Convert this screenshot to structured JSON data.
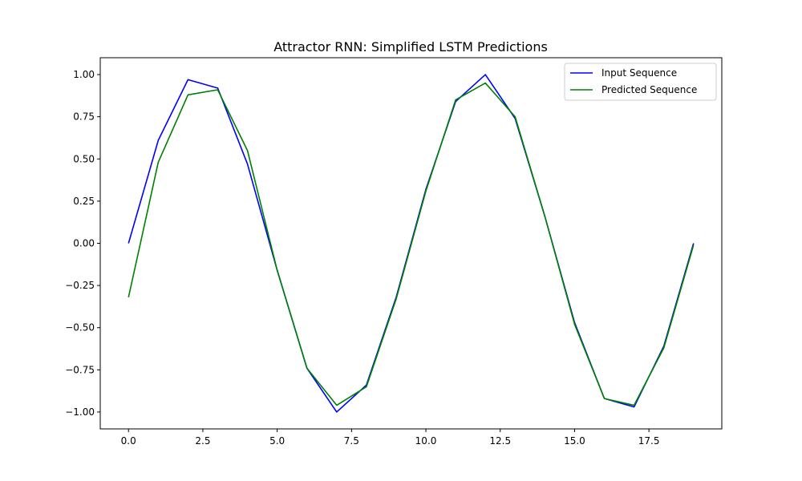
{
  "chart_data": {
    "type": "line",
    "title": "Attractor RNN: Simplified LSTM Predictions",
    "xlabel": "",
    "ylabel": "",
    "xlim": [
      -0.95,
      19.95
    ],
    "ylim": [
      -1.1,
      1.1
    ],
    "xticks": [
      0.0,
      2.5,
      5.0,
      7.5,
      10.0,
      12.5,
      15.0,
      17.5
    ],
    "xtick_labels": [
      "0.0",
      "2.5",
      "5.0",
      "7.5",
      "10.0",
      "12.5",
      "15.0",
      "17.5"
    ],
    "yticks": [
      -1.0,
      -0.75,
      -0.5,
      -0.25,
      0.0,
      0.25,
      0.5,
      0.75,
      1.0
    ],
    "ytick_labels": [
      "−1.00",
      "−0.75",
      "−0.50",
      "−0.25",
      "0.00",
      "0.25",
      "0.50",
      "0.75",
      "1.00"
    ],
    "grid": false,
    "legend_position": "top-right",
    "x": [
      0,
      1,
      2,
      3,
      4,
      5,
      6,
      7,
      8,
      9,
      10,
      11,
      12,
      13,
      14,
      15,
      16,
      17,
      18,
      19
    ],
    "series": [
      {
        "name": "Input Sequence",
        "color": "#0000ff",
        "values": [
          0.0,
          0.61,
          0.97,
          0.92,
          0.47,
          -0.16,
          -0.74,
          -1.0,
          -0.84,
          -0.32,
          0.32,
          0.84,
          1.0,
          0.74,
          0.16,
          -0.47,
          -0.92,
          -0.97,
          -0.61,
          0.0
        ]
      },
      {
        "name": "Predicted Sequence",
        "color": "#008000",
        "values": [
          -0.32,
          0.48,
          0.88,
          0.91,
          0.55,
          -0.16,
          -0.74,
          -0.96,
          -0.85,
          -0.33,
          0.31,
          0.85,
          0.95,
          0.75,
          0.16,
          -0.48,
          -0.92,
          -0.96,
          -0.62,
          -0.01
        ]
      }
    ]
  }
}
